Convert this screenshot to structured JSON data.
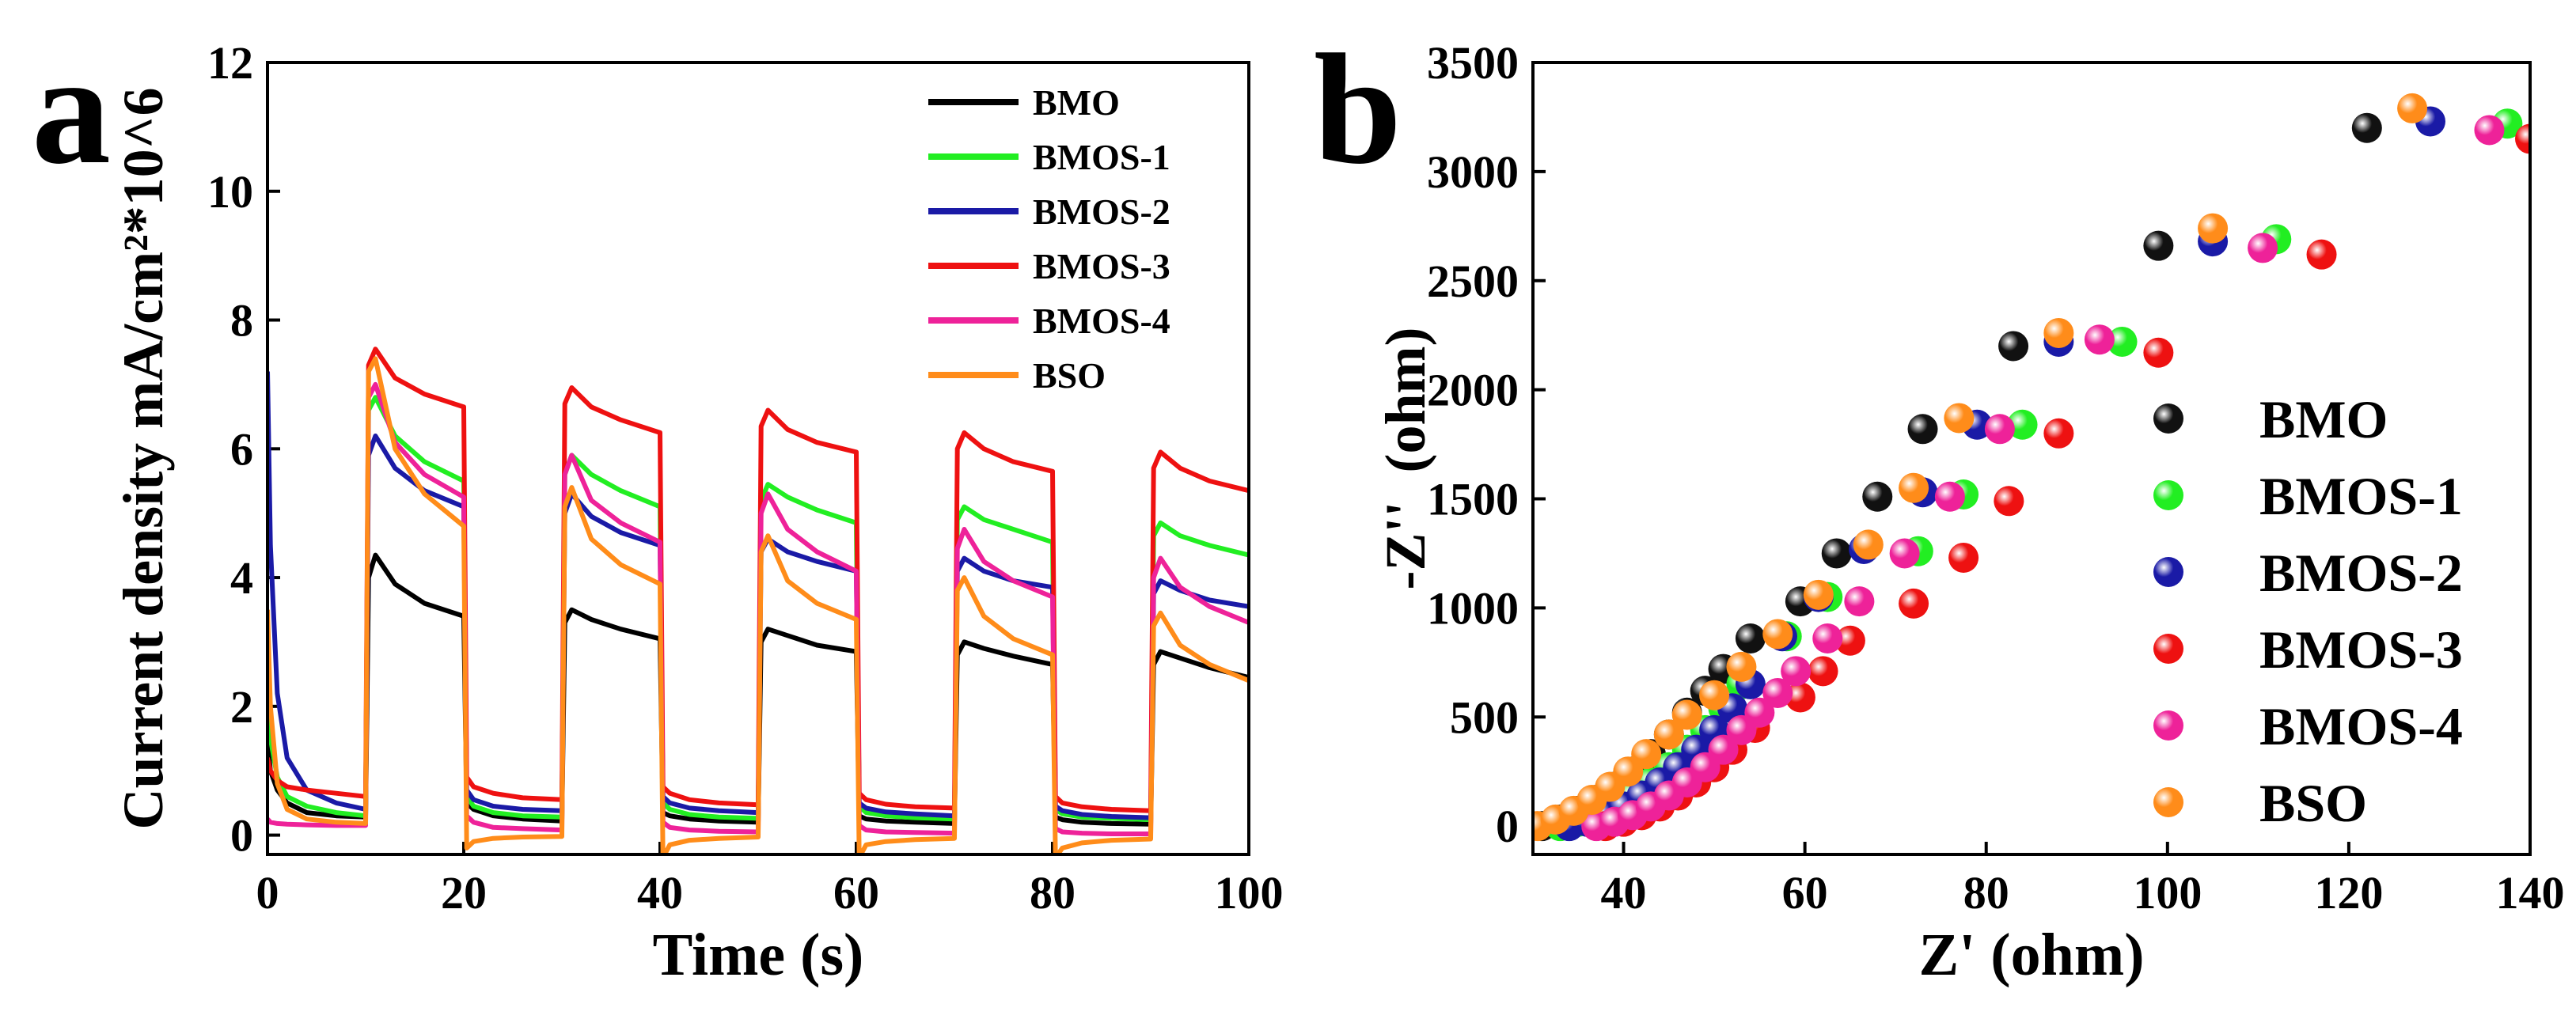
{
  "chart_data": [
    {
      "type": "line",
      "panel": "a",
      "xlabel": "Time (s)",
      "ylabel": "Current density mA/cm²*10^6",
      "xlim": [
        0,
        100
      ],
      "xticks": [
        0,
        20,
        40,
        60,
        80,
        100
      ],
      "ylim": [
        -0.3,
        12
      ],
      "yticks": [
        0,
        2,
        4,
        6,
        8,
        10,
        12
      ],
      "legend": "upper right",
      "x": [
        0,
        0.3,
        1,
        2,
        4,
        7,
        10,
        10.3,
        11,
        13,
        16,
        20,
        20.3,
        21,
        23,
        26,
        30,
        30.3,
        31,
        33,
        36,
        40,
        40.3,
        41,
        43,
        46,
        50,
        50.3,
        51,
        53,
        56,
        60,
        60.3,
        61,
        63,
        66,
        70,
        70.3,
        71,
        73,
        76,
        80,
        80.3,
        81,
        83,
        86,
        90,
        90.3,
        91,
        93,
        96,
        100
      ],
      "series": [
        {
          "name": "BMO",
          "color": "#000000",
          "values": [
            1.5,
            1.0,
            0.7,
            0.5,
            0.35,
            0.3,
            0.28,
            4.0,
            4.35,
            3.9,
            3.6,
            3.4,
            0.5,
            0.4,
            0.3,
            0.25,
            0.22,
            3.3,
            3.5,
            3.35,
            3.2,
            3.05,
            0.35,
            0.3,
            0.25,
            0.22,
            0.2,
            3.0,
            3.2,
            3.1,
            2.95,
            2.85,
            0.3,
            0.25,
            0.22,
            0.2,
            0.18,
            2.8,
            3.0,
            2.9,
            2.78,
            2.65,
            0.28,
            0.24,
            0.2,
            0.18,
            0.17,
            2.65,
            2.85,
            2.75,
            2.6,
            2.45
          ]
        },
        {
          "name": "BMOS-1",
          "color": "#22ee22",
          "values": [
            2.5,
            1.5,
            0.9,
            0.6,
            0.45,
            0.35,
            0.3,
            6.6,
            6.8,
            6.2,
            5.8,
            5.5,
            0.6,
            0.45,
            0.35,
            0.3,
            0.28,
            5.6,
            5.9,
            5.6,
            5.35,
            5.1,
            0.5,
            0.4,
            0.32,
            0.28,
            0.26,
            5.2,
            5.45,
            5.25,
            5.05,
            4.85,
            0.45,
            0.35,
            0.3,
            0.27,
            0.25,
            4.9,
            5.1,
            4.9,
            4.75,
            4.55,
            0.4,
            0.33,
            0.28,
            0.26,
            0.24,
            4.65,
            4.85,
            4.65,
            4.5,
            4.35
          ]
        },
        {
          "name": "BMOS-2",
          "color": "#1a1aa6",
          "values": [
            7.2,
            4.5,
            2.2,
            1.2,
            0.7,
            0.5,
            0.4,
            5.9,
            6.2,
            5.7,
            5.35,
            5.1,
            0.7,
            0.55,
            0.45,
            0.4,
            0.38,
            5.0,
            5.3,
            4.95,
            4.7,
            4.5,
            0.6,
            0.5,
            0.42,
            0.38,
            0.35,
            4.4,
            4.6,
            4.4,
            4.25,
            4.1,
            0.5,
            0.42,
            0.36,
            0.33,
            0.3,
            4.1,
            4.3,
            4.1,
            3.95,
            3.85,
            0.45,
            0.38,
            0.32,
            0.29,
            0.27,
            3.75,
            3.95,
            3.8,
            3.65,
            3.55
          ]
        },
        {
          "name": "BMOS-3",
          "color": "#ee1111",
          "values": [
            1.2,
            1.0,
            0.85,
            0.75,
            0.7,
            0.65,
            0.6,
            7.3,
            7.55,
            7.1,
            6.85,
            6.65,
            0.9,
            0.75,
            0.65,
            0.58,
            0.55,
            6.7,
            6.95,
            6.65,
            6.45,
            6.25,
            0.75,
            0.65,
            0.55,
            0.5,
            0.47,
            6.35,
            6.6,
            6.3,
            6.1,
            5.95,
            0.65,
            0.55,
            0.48,
            0.44,
            0.42,
            6.0,
            6.25,
            6.0,
            5.8,
            5.65,
            0.6,
            0.5,
            0.44,
            0.4,
            0.38,
            5.7,
            5.95,
            5.7,
            5.5,
            5.35
          ]
        },
        {
          "name": "BMOS-4",
          "color": "#ee2299",
          "values": [
            0.25,
            0.2,
            0.18,
            0.17,
            0.16,
            0.15,
            0.15,
            6.8,
            7.0,
            6.1,
            5.6,
            5.25,
            0.3,
            0.2,
            0.12,
            0.1,
            0.08,
            5.6,
            5.9,
            5.2,
            4.85,
            4.55,
            0.2,
            0.12,
            0.08,
            0.06,
            0.05,
            5.0,
            5.3,
            4.75,
            4.4,
            4.1,
            0.15,
            0.08,
            0.05,
            0.04,
            0.03,
            4.45,
            4.75,
            4.25,
            3.95,
            3.7,
            0.1,
            0.05,
            0.03,
            0.02,
            0.02,
            4.0,
            4.3,
            3.85,
            3.55,
            3.3
          ]
        },
        {
          "name": "BSO",
          "color": "#ff8c1a",
          "values": [
            3.5,
            2.0,
            0.8,
            0.4,
            0.25,
            0.2,
            0.18,
            7.2,
            7.4,
            6.0,
            5.3,
            4.8,
            -0.2,
            -0.1,
            -0.05,
            -0.03,
            -0.02,
            5.1,
            5.4,
            4.6,
            4.2,
            3.9,
            -0.35,
            -0.15,
            -0.08,
            -0.05,
            -0.03,
            4.4,
            4.65,
            3.95,
            3.6,
            3.35,
            -0.35,
            -0.15,
            -0.1,
            -0.07,
            -0.05,
            3.8,
            4.0,
            3.4,
            3.05,
            2.8,
            -0.35,
            -0.2,
            -0.12,
            -0.08,
            -0.06,
            3.25,
            3.45,
            2.95,
            2.65,
            2.4
          ]
        }
      ]
    },
    {
      "type": "scatter",
      "panel": "b",
      "xlabel": "Z' (ohm)",
      "ylabel": "-Z''  (ohm)",
      "xlim": [
        30,
        140
      ],
      "xticks": [
        40,
        60,
        80,
        100,
        120,
        140
      ],
      "ylim": [
        -130,
        3500
      ],
      "yticks": [
        0,
        500,
        1000,
        1500,
        2000,
        2500,
        3000,
        3500
      ],
      "legend": "center right",
      "series": [
        {
          "name": "BMO",
          "color": "#111111",
          "x": [
            31,
            33,
            35,
            37,
            39,
            41,
            43,
            45,
            47,
            49,
            51,
            54,
            59.5,
            63.5,
            68,
            73,
            83,
            99,
            122
          ],
          "values": [
            0,
            30,
            70,
            120,
            180,
            250,
            330,
            420,
            520,
            620,
            720,
            860,
            1030,
            1250,
            1510,
            1820,
            2200,
            2660,
            3200
          ]
        },
        {
          "name": "BMOS-1",
          "color": "#22ee22",
          "x": [
            33,
            35,
            37,
            39,
            41,
            43,
            45,
            47,
            49,
            51,
            53,
            58,
            62.5,
            72.5,
            77.5,
            84,
            95,
            112,
            137.5
          ],
          "values": [
            0,
            20,
            50,
            90,
            140,
            200,
            270,
            350,
            440,
            540,
            650,
            870,
            1050,
            1260,
            1520,
            1840,
            2220,
            2690,
            3220
          ]
        },
        {
          "name": "BMOS-2",
          "color": "#1a1aa6",
          "x": [
            34,
            36,
            38,
            40,
            42,
            44,
            46,
            48,
            50,
            52,
            54,
            57.5,
            61.5,
            66.5,
            73,
            79,
            88,
            105,
            129
          ],
          "values": [
            0,
            20,
            50,
            90,
            140,
            200,
            270,
            350,
            440,
            540,
            650,
            870,
            1050,
            1270,
            1530,
            1840,
            2220,
            2680,
            3230
          ]
        },
        {
          "name": "BMOS-3",
          "color": "#ee1111",
          "x": [
            38,
            40,
            42,
            44,
            46,
            48,
            50,
            52,
            54.5,
            59.5,
            62,
            65,
            72,
            77.5,
            82.5,
            88,
            99,
            117,
            140
          ],
          "values": [
            0,
            20,
            50,
            90,
            140,
            200,
            270,
            350,
            450,
            590,
            710,
            850,
            1020,
            1230,
            1490,
            1800,
            2170,
            2620,
            3150
          ]
        },
        {
          "name": "BMOS-4",
          "color": "#ee2299",
          "x": [
            37,
            39,
            41,
            43,
            45,
            47,
            49,
            51,
            53,
            55,
            57,
            59,
            62.5,
            66,
            71,
            76,
            81.5,
            92.5,
            110.5,
            135.5
          ],
          "values": [
            0,
            20,
            50,
            90,
            140,
            200,
            270,
            350,
            440,
            520,
            610,
            710,
            860,
            1030,
            1250,
            1510,
            1820,
            2230,
            2650,
            3190
          ]
        },
        {
          "name": "BSO",
          "color": "#ff8c1a",
          "x": [
            30.5,
            32.5,
            34.5,
            36.5,
            38.5,
            40.5,
            42.5,
            45,
            47,
            50,
            53,
            57,
            61.5,
            67,
            72,
            77,
            88,
            105,
            127
          ],
          "values": [
            0,
            30,
            70,
            120,
            180,
            250,
            330,
            420,
            510,
            600,
            730,
            880,
            1060,
            1290,
            1550,
            1870,
            2260,
            2740,
            3290
          ]
        }
      ]
    }
  ]
}
